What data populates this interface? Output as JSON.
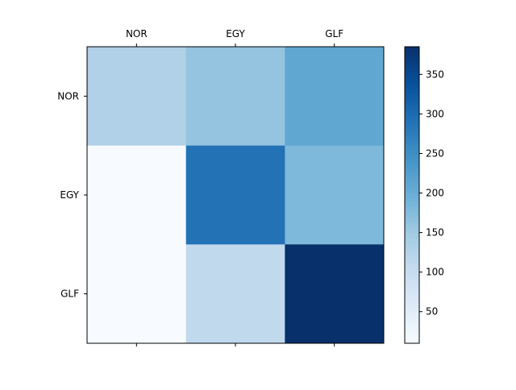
{
  "chart_data": {
    "type": "heatmap",
    "title": "",
    "xlabel": "",
    "ylabel": "",
    "x_categories": [
      "NOR",
      "EGY",
      "GLF"
    ],
    "y_categories": [
      "NOR",
      "EGY",
      "GLF"
    ],
    "x_axis_position": "top",
    "values": [
      [
        130,
        160,
        210
      ],
      [
        10,
        290,
        180
      ],
      [
        10,
        110,
        385
      ]
    ],
    "colormap": "Blues",
    "colorbar": {
      "range": [
        10,
        385
      ],
      "ticks": [
        50,
        100,
        150,
        200,
        250,
        300,
        350
      ],
      "tick_labels": [
        "50",
        "100",
        "150",
        "200",
        "250",
        "300",
        "350"
      ]
    },
    "grid": false
  }
}
